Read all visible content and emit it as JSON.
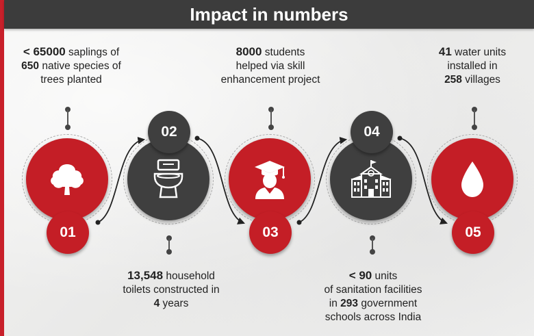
{
  "title": "Impact in numbers",
  "items": [
    {
      "number": "01",
      "icon": "tree-icon",
      "color": "#c41e26",
      "text": [
        {
          "b": "< 65000",
          "t": " saplings of"
        },
        {
          "b": "650",
          "t": " native species of"
        },
        {
          "b": "",
          "t": "trees planted"
        }
      ]
    },
    {
      "number": "02",
      "icon": "toilet-icon",
      "color": "#3f3f3f",
      "text": [
        {
          "b": "13,548",
          "t": " household"
        },
        {
          "b": "",
          "t": "toilets constructed in"
        },
        {
          "b": "4",
          "t": " years"
        }
      ]
    },
    {
      "number": "03",
      "icon": "graduate-icon",
      "color": "#c41e26",
      "text": [
        {
          "b": "8000",
          "t": " students"
        },
        {
          "b": "",
          "t": "helped via skill"
        },
        {
          "b": "",
          "t": "enhancement project"
        }
      ]
    },
    {
      "number": "04",
      "icon": "school-building-icon",
      "color": "#3f3f3f",
      "text": [
        {
          "b": "< 90",
          "t": " units"
        },
        {
          "b": "",
          "t": "of sanitation facilities"
        },
        {
          "b": "293",
          "t": " government",
          "pre": "in "
        },
        {
          "b": "",
          "t": "schools across India"
        }
      ]
    },
    {
      "number": "05",
      "icon": "water-drop-icon",
      "color": "#c41e26",
      "text": [
        {
          "b": "41",
          "t": " water units"
        },
        {
          "b": "",
          "t": "installed in"
        },
        {
          "b": "258",
          "t": " villages"
        }
      ]
    }
  ]
}
